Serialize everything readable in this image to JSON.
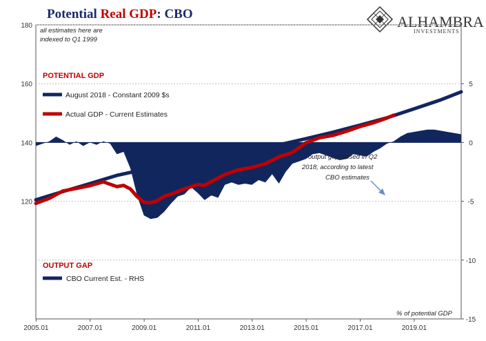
{
  "title": {
    "part1": "Potential ",
    "part2": "Real GDP",
    "part3": ":  CBO",
    "color1": "#1a2a6c",
    "color2": "#c00000"
  },
  "logo": {
    "name": "ALHAMBRA",
    "sub": "INVESTMENTS"
  },
  "annotations": {
    "index_note_line1": "all estimates here are",
    "index_note_line2": "indexed to Q1 1999",
    "gap_note_line1": "output gap closed in Q2",
    "gap_note_line2": "2018, according to latest",
    "gap_note_line3": "CBO estimates",
    "rhs_unit": "% of potential GDP"
  },
  "legend": {
    "potential_head": "POTENTIAL GDP",
    "potential_series": "August 2018 - Constant 2009 $s",
    "actual_series": "Actual GDP - Current Estimates",
    "gap_head": "OUTPUT GAP",
    "gap_series": "CBO Current Est. - RHS"
  },
  "chart_data": {
    "type": "line",
    "colors": {
      "potential": "#12265e",
      "actual": "#c00000",
      "gap": "#12265e",
      "grid": "#b8b8b8"
    },
    "x_ticks": [
      "2005.01",
      "2007.01",
      "2009.01",
      "2011.01",
      "2013.01",
      "2015.01",
      "2017.01",
      "2019.01"
    ],
    "x_range": [
      2005.0,
      2020.75
    ],
    "y_left": {
      "range": [
        80,
        180
      ],
      "ticks": [
        120,
        140,
        160,
        180
      ],
      "grid": [
        120,
        140,
        160,
        180,
        100
      ]
    },
    "y_right": {
      "range": [
        -15,
        10
      ],
      "ticks": [
        5,
        0,
        -5,
        -10,
        -15
      ]
    },
    "series": [
      {
        "name": "August 2018 - Constant 2009 $s",
        "axis": "left",
        "x": [
          2005.0,
          2006.0,
          2007.0,
          2008.0,
          2009.0,
          2010.0,
          2011.0,
          2012.0,
          2013.0,
          2014.0,
          2015.0,
          2016.0,
          2017.0,
          2018.0,
          2019.0,
          2020.0,
          2020.75
        ],
        "values": [
          120.5,
          123.3,
          126.0,
          128.8,
          130.8,
          132.3,
          133.5,
          135.3,
          137.2,
          139.2,
          141.3,
          143.5,
          145.9,
          148.4,
          151.4,
          154.5,
          157.2
        ]
      },
      {
        "name": "Actual GDP - Current Estimates",
        "axis": "left",
        "x": [
          2005.0,
          2005.5,
          2006.0,
          2006.5,
          2007.0,
          2007.5,
          2008.0,
          2008.25,
          2008.5,
          2008.75,
          2009.0,
          2009.25,
          2009.5,
          2009.75,
          2010.0,
          2010.5,
          2011.0,
          2011.25,
          2011.5,
          2012.0,
          2012.5,
          2013.0,
          2013.5,
          2014.0,
          2014.5,
          2015.0,
          2015.5,
          2016.0,
          2016.5,
          2017.0,
          2017.5,
          2018.0,
          2018.25
        ],
        "values": [
          119.3,
          121.0,
          123.5,
          124.4,
          125.3,
          126.6,
          125.0,
          125.4,
          124.2,
          121.6,
          119.7,
          119.5,
          120.2,
          121.7,
          122.4,
          124.2,
          125.7,
          125.4,
          126.7,
          129.1,
          130.7,
          131.5,
          132.8,
          135.1,
          136.6,
          139.9,
          141.6,
          142.4,
          143.8,
          145.4,
          146.7,
          148.3,
          149.3
        ]
      },
      {
        "name": "CBO Current Est. - RHS",
        "axis": "right",
        "type": "area",
        "x": [
          2005.0,
          2005.5,
          2005.75,
          2006.0,
          2006.25,
          2006.5,
          2006.75,
          2007.0,
          2007.25,
          2007.5,
          2007.75,
          2008.0,
          2008.25,
          2008.5,
          2008.75,
          2009.0,
          2009.25,
          2009.5,
          2009.75,
          2010.0,
          2010.25,
          2010.5,
          2010.75,
          2011.0,
          2011.25,
          2011.5,
          2011.75,
          2012.0,
          2012.25,
          2012.5,
          2012.75,
          2013.0,
          2013.25,
          2013.5,
          2013.75,
          2014.0,
          2014.25,
          2014.5,
          2014.75,
          2015.0,
          2015.25,
          2015.5,
          2015.75,
          2016.0,
          2016.25,
          2016.5,
          2016.75,
          2017.0,
          2017.25,
          2017.5,
          2017.75,
          2018.0,
          2018.25,
          2018.5,
          2018.75,
          2019.0,
          2019.25,
          2019.5,
          2019.75,
          2020.0,
          2020.25,
          2020.5,
          2020.75
        ],
        "values": [
          -0.3,
          0.1,
          0.5,
          0.2,
          -0.2,
          0.1,
          -0.3,
          0.0,
          -0.2,
          0.1,
          -0.1,
          -1.0,
          -0.8,
          -2.2,
          -4.5,
          -6.2,
          -6.5,
          -6.4,
          -5.9,
          -5.2,
          -4.6,
          -4.4,
          -3.8,
          -4.3,
          -4.9,
          -4.5,
          -4.7,
          -3.6,
          -3.4,
          -3.6,
          -3.5,
          -3.6,
          -3.2,
          -3.4,
          -2.7,
          -3.5,
          -2.5,
          -1.8,
          -1.6,
          -1.4,
          -1.0,
          -0.9,
          -1.1,
          -1.3,
          -1.5,
          -1.4,
          -1.0,
          -1.1,
          -1.2,
          -0.8,
          -0.5,
          -0.1,
          0.1,
          0.5,
          0.8,
          0.9,
          1.0,
          1.1,
          1.1,
          1.0,
          0.9,
          0.8,
          0.7
        ]
      }
    ]
  }
}
